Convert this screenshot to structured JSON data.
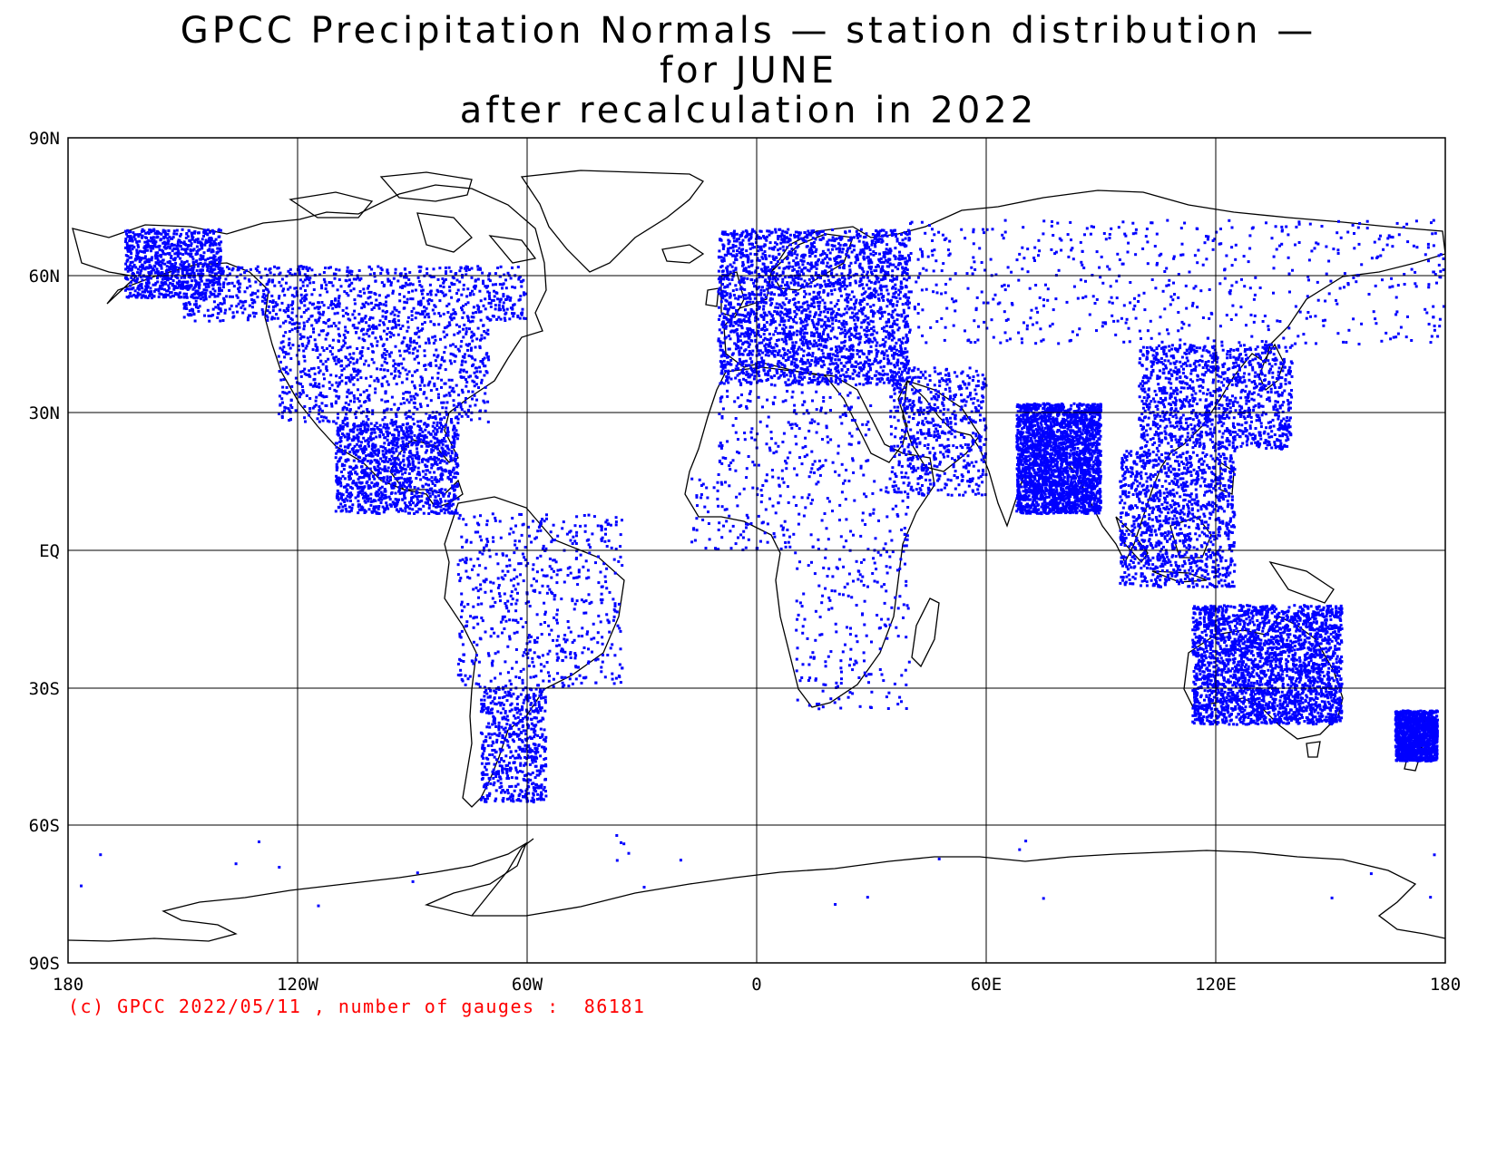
{
  "title": {
    "line1": "GPCC Precipitation Normals — station distribution —",
    "line2": "for JUNE",
    "line3": "after recalculation in 2022"
  },
  "colors": {
    "stations": "#0000ff",
    "coast": "#000000",
    "grid": "#000000",
    "credit": "#ff0000"
  },
  "axes": {
    "lat_ticks": [
      "90N",
      "60N",
      "30N",
      "EQ",
      "30S",
      "60S",
      "90S"
    ],
    "lon_ticks": [
      "180",
      "120W",
      "60W",
      "0",
      "60E",
      "120E",
      "180"
    ]
  },
  "credit": "(c) GPCC 2022/05/11 , number of gauges :  86181",
  "chart_data": {
    "type": "scatter",
    "xlim": [
      -180,
      180
    ],
    "ylim": [
      -90,
      90
    ],
    "grid": true,
    "series": [
      {
        "regions": [
          {
            "region": "North America",
            "density": "very high"
          },
          {
            "region": "Central America",
            "density": "high"
          },
          {
            "region": "South America",
            "density": "high"
          },
          {
            "region": "Europe",
            "density": "very high"
          },
          {
            "region": "Africa",
            "density": "medium"
          },
          {
            "region": "Middle East",
            "density": "medium"
          },
          {
            "region": "India",
            "density": "very high"
          },
          {
            "region": "East Asia",
            "density": "high"
          },
          {
            "region": "Northern Asia",
            "density": "medium"
          },
          {
            "region": "Southeast Asia",
            "density": "high"
          },
          {
            "region": "Australia",
            "density": "very high"
          },
          {
            "region": "New Zealand",
            "density": "high"
          },
          {
            "region": "Antarctica",
            "density": "very low"
          }
        ]
      }
    ]
  }
}
